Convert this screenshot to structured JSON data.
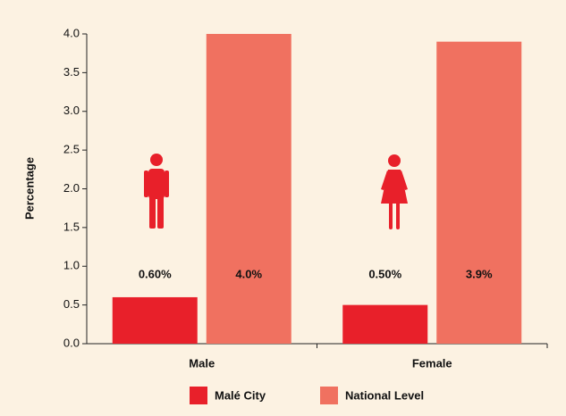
{
  "chart_data": {
    "type": "bar",
    "y_label": "Percentage",
    "categories": [
      "Male",
      "Female"
    ],
    "series": [
      {
        "name": "Malé City",
        "color": "#e8202a",
        "values": [
          0.6,
          0.5
        ],
        "value_labels": [
          "0.60%",
          "0.50%"
        ]
      },
      {
        "name": "National Level",
        "color": "#f07160",
        "values": [
          4.0,
          3.9
        ],
        "value_labels": [
          "4.0%",
          "3.9%"
        ]
      }
    ],
    "ylim": [
      0,
      4
    ],
    "yticks": [
      {
        "value": 0,
        "label": "0.0"
      },
      0.5,
      {
        "value": 1,
        "label": "1.0"
      },
      1.5,
      {
        "value": 2,
        "label": "2.0"
      },
      2.5,
      {
        "value": 3,
        "label": "3.0"
      },
      3.5,
      {
        "value": 4,
        "label": "4.0"
      }
    ],
    "grid": false,
    "legend": "bottom"
  }
}
